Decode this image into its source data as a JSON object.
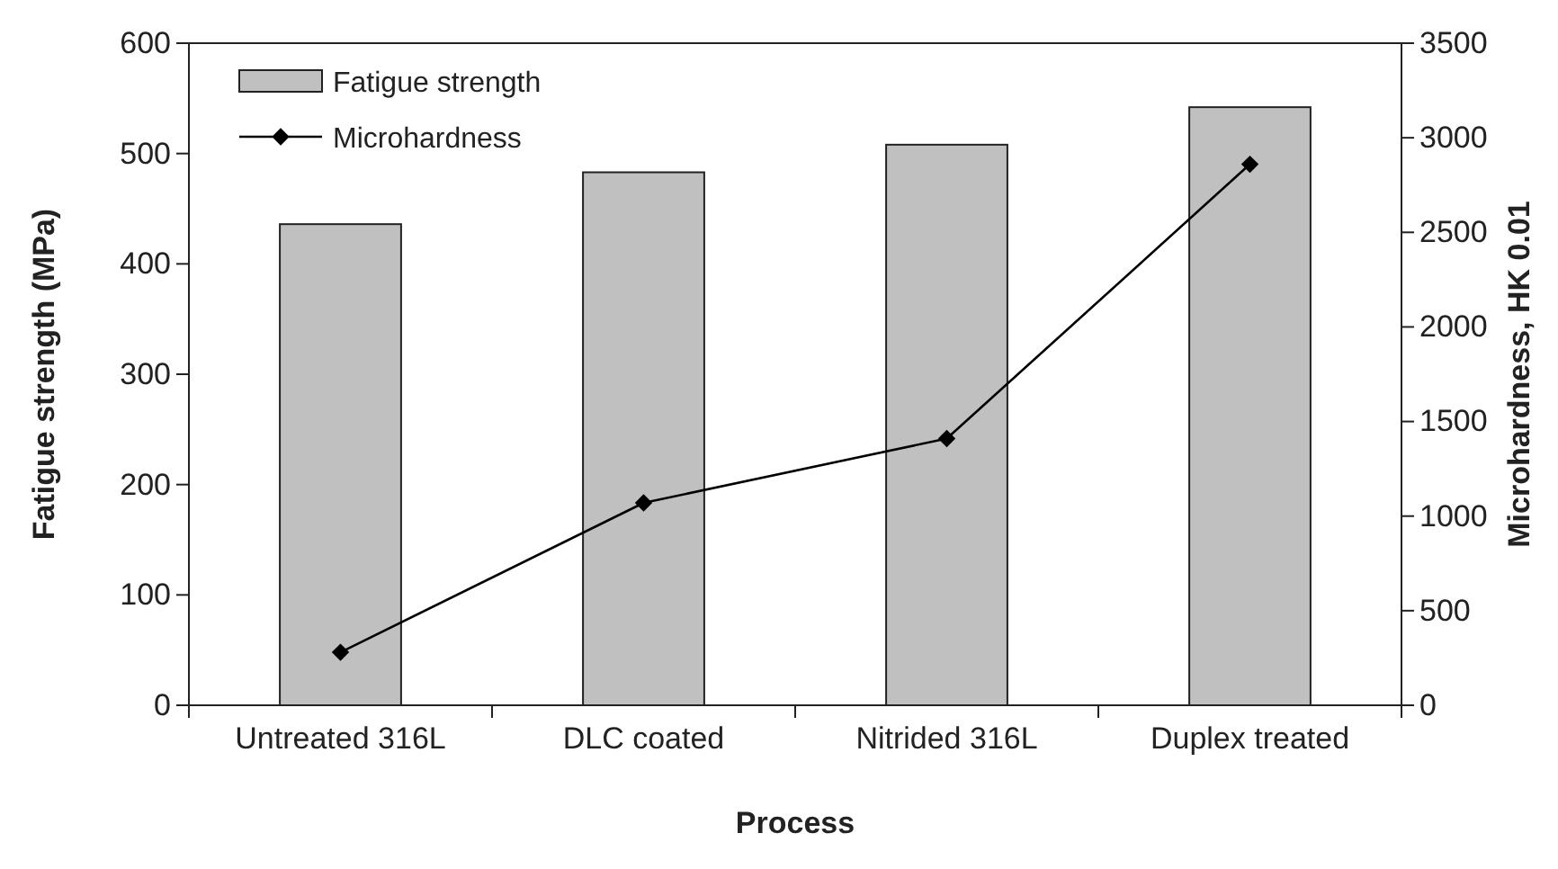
{
  "chart_data": {
    "type": "bar",
    "xlabel": "Process",
    "ylabel": "Fatigue strength (MPa)",
    "y2label": "Microhardness, HK 0.01",
    "categories": [
      "Untreated 316L",
      "DLC coated",
      "Nitrided 316L",
      "Duplex treated"
    ],
    "series": [
      {
        "name": "Fatigue strength",
        "color": "#c0c0c0",
        "values": [
          436,
          483,
          508,
          542
        ]
      },
      {
        "name": "Microhardness",
        "type": "line",
        "axis": "y2",
        "color": "#000000",
        "marker": "diamond",
        "values": [
          280,
          1070,
          1410,
          2860
        ]
      }
    ],
    "ylim": [
      0,
      600
    ],
    "yticks": [
      0,
      100,
      200,
      300,
      400,
      500,
      600
    ],
    "y2lim": [
      0,
      3500
    ],
    "y2ticks": [
      0,
      500,
      1000,
      1500,
      2000,
      2500,
      3000,
      3500
    ],
    "legend": "top left",
    "grid": false
  }
}
